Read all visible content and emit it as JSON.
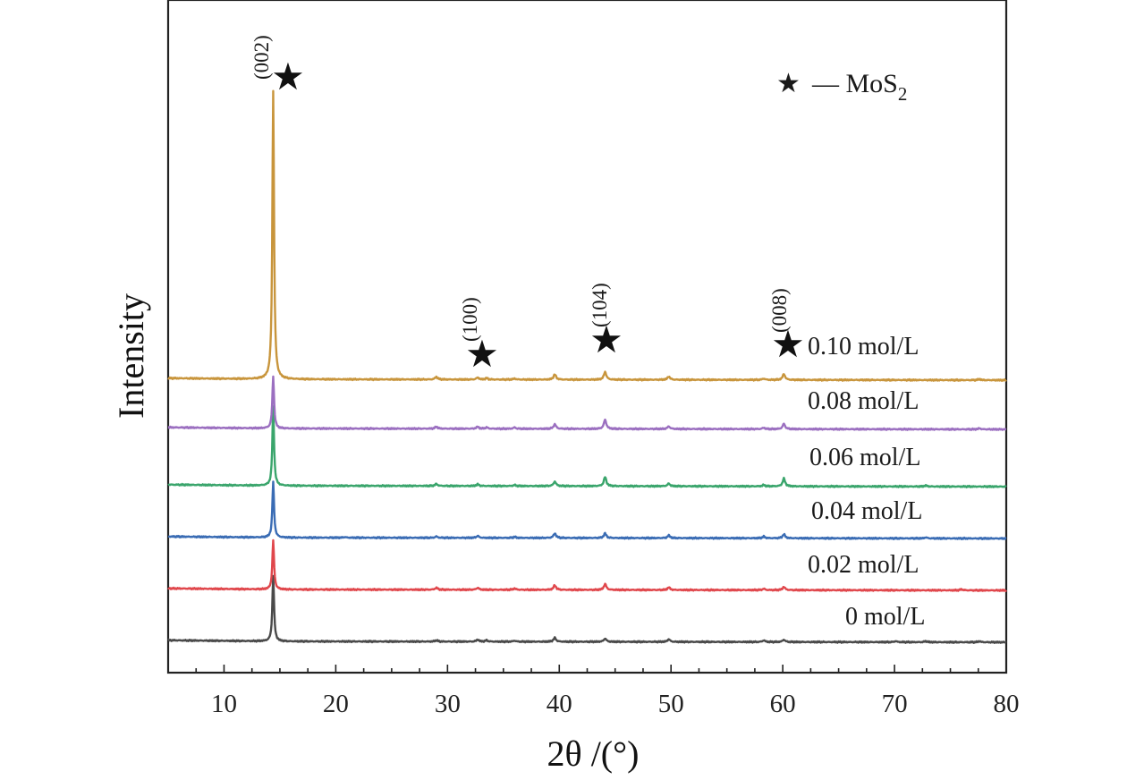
{
  "chart_data": {
    "type": "line",
    "title": "",
    "xlabel": "2θ /(°)",
    "ylabel": "Intensity",
    "xlim": [
      5,
      80
    ],
    "xticks": [
      10,
      20,
      30,
      40,
      50,
      60,
      70,
      80
    ],
    "y_units": "arbitrary (stacked, offset)",
    "grid": false,
    "legend": {
      "placement": "top-right",
      "symbol": "★",
      "text": "— MoS",
      "subscript": "2"
    },
    "peaks": [
      {
        "x": 14.4,
        "label": "(002)"
      },
      {
        "x": 32.7,
        "label": "(100)"
      },
      {
        "x": 44.1,
        "label": "(104)"
      },
      {
        "x": 60.1,
        "label": "(008)"
      }
    ],
    "series": [
      {
        "name": "0 mol/L",
        "color": "#4a4a4a",
        "peaks": [
          [
            14.4,
            100
          ],
          [
            29.0,
            2
          ],
          [
            32.7,
            3
          ],
          [
            33.5,
            2
          ],
          [
            36.0,
            1.5
          ],
          [
            39.6,
            6
          ],
          [
            44.1,
            5
          ],
          [
            49.8,
            4
          ],
          [
            58.3,
            2.5
          ],
          [
            60.1,
            3.5
          ],
          [
            70.1,
            1.5
          ],
          [
            72.8,
            1.5
          ],
          [
            77.6,
            1.5
          ]
        ]
      },
      {
        "name": "0.02 mol/L",
        "color": "#e0474c",
        "peaks": [
          [
            14.4,
            75
          ],
          [
            29.0,
            3
          ],
          [
            32.7,
            3
          ],
          [
            36.0,
            2
          ],
          [
            39.6,
            7
          ],
          [
            44.1,
            9
          ],
          [
            49.8,
            4
          ],
          [
            58.3,
            2
          ],
          [
            60.1,
            5
          ],
          [
            76.0,
            1.5
          ]
        ]
      },
      {
        "name": "0.04 mol/L",
        "color": "#3a6cb4",
        "peaks": [
          [
            14.4,
            85
          ],
          [
            20.8,
            1
          ],
          [
            29.0,
            2
          ],
          [
            32.7,
            3
          ],
          [
            36.0,
            1.5
          ],
          [
            39.6,
            7
          ],
          [
            44.1,
            7
          ],
          [
            49.8,
            4
          ],
          [
            58.3,
            2.5
          ],
          [
            60.1,
            6
          ],
          [
            72.8,
            1.5
          ]
        ]
      },
      {
        "name": "0.06 mol/L",
        "color": "#3aa56c",
        "peaks": [
          [
            14.4,
            120
          ],
          [
            29.0,
            3
          ],
          [
            32.7,
            2.5
          ],
          [
            36.0,
            1.5
          ],
          [
            39.6,
            7
          ],
          [
            44.1,
            14
          ],
          [
            49.8,
            4
          ],
          [
            58.3,
            2
          ],
          [
            60.1,
            12
          ],
          [
            72.8,
            1.5
          ]
        ]
      },
      {
        "name": "0.08 mol/L",
        "color": "#9b6fc0",
        "peaks": [
          [
            14.4,
            80
          ],
          [
            29.0,
            3
          ],
          [
            32.7,
            3
          ],
          [
            33.5,
            2
          ],
          [
            36.0,
            2
          ],
          [
            39.6,
            7
          ],
          [
            44.1,
            14
          ],
          [
            49.8,
            4
          ],
          [
            58.3,
            2
          ],
          [
            60.1,
            8
          ],
          [
            77.6,
            1.5
          ]
        ]
      },
      {
        "name": "0.10 mol/L",
        "color": "#c8953c",
        "peaks": [
          [
            14.4,
            440
          ],
          [
            29.0,
            4
          ],
          [
            32.7,
            3
          ],
          [
            33.5,
            2
          ],
          [
            36.0,
            1.5
          ],
          [
            39.6,
            8
          ],
          [
            44.1,
            12
          ],
          [
            49.8,
            5
          ],
          [
            58.3,
            2
          ],
          [
            60.1,
            9
          ],
          [
            77.6,
            1.5
          ]
        ]
      }
    ]
  }
}
